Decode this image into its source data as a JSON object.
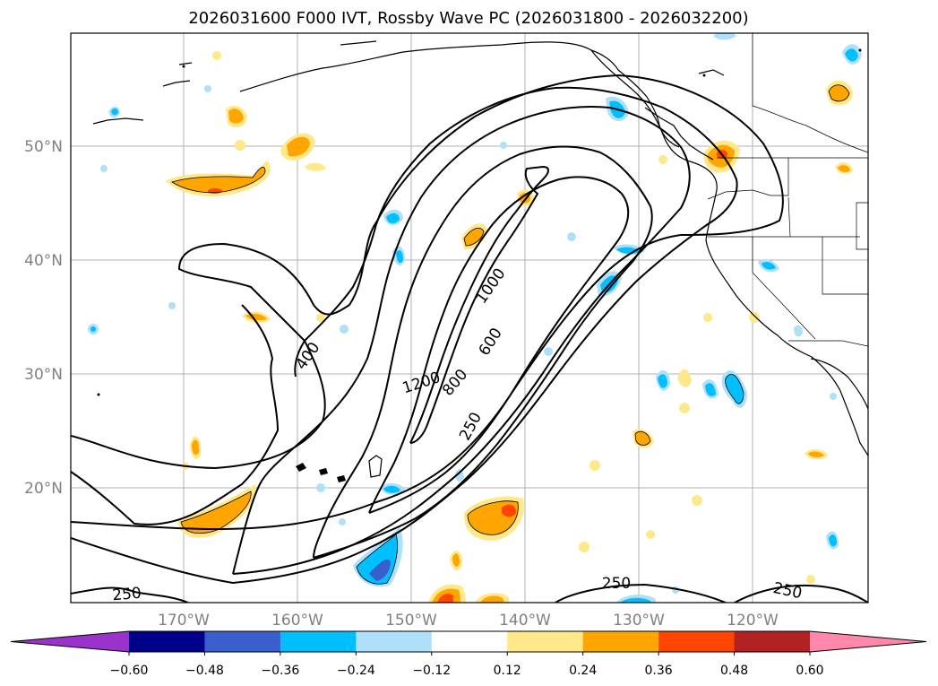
{
  "title": "2026031600 F000 IVT, Rossby Wave PC (2026031800 - 2026032200)",
  "lon_labels": [
    "170°W",
    "160°W",
    "150°W",
    "140°W",
    "130°W",
    "120°W"
  ],
  "lat_labels": [
    "50°N",
    "40°N",
    "30°N",
    "20°N"
  ],
  "contour_labels": [
    "250",
    "400",
    "600",
    "800",
    "1000",
    "1200",
    "250",
    "250",
    "250"
  ],
  "colorbar": {
    "ticks": [
      "−0.60",
      "−0.48",
      "−0.36",
      "−0.24",
      "−0.12",
      "0.12",
      "0.24",
      "0.36",
      "0.48",
      "0.60"
    ],
    "colors": [
      "#9933cc",
      "#00008b",
      "#3a5fcd",
      "#00bfff",
      "#afe0fa",
      "#ffffff",
      "#ffe88a",
      "#ffa500",
      "#ff4500",
      "#b22222",
      "#ff88aa"
    ]
  }
}
